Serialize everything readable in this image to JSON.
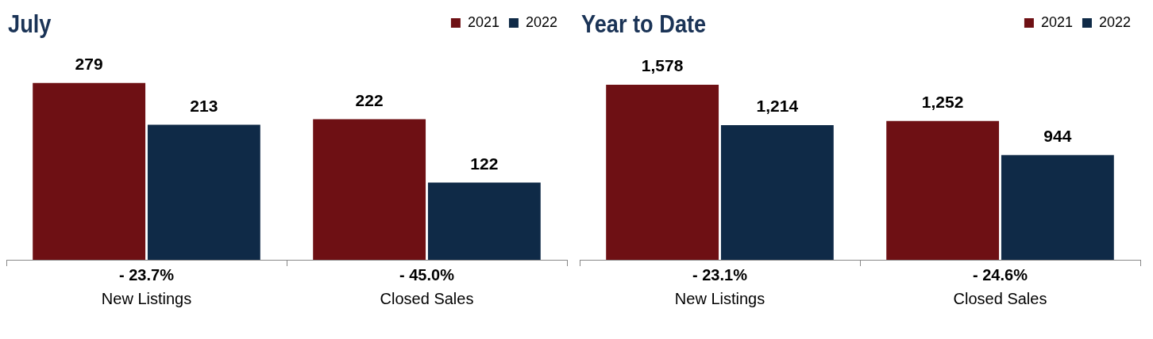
{
  "chart_data": [
    {
      "type": "bar",
      "title": "July",
      "categories": [
        "New Listings",
        "Closed Sales"
      ],
      "legend": "top right",
      "data_labels": true,
      "series": [
        {
          "name": "2021",
          "color": "#6e1014",
          "values": [
            279,
            222
          ]
        },
        {
          "name": "2022",
          "color": "#0f2a47",
          "values": [
            213,
            122
          ]
        }
      ],
      "annotations": [
        "- 23.7%",
        "- 45.0%"
      ]
    },
    {
      "type": "bar",
      "title": "Year to Date",
      "categories": [
        "New Listings",
        "Closed Sales"
      ],
      "legend": "top right",
      "series": [
        {
          "name": "2021",
          "color": "#6e1014",
          "values": [
            1578,
            1252
          ],
          "value_labels": [
            "1,578",
            "1,252"
          ]
        },
        {
          "name": "2022",
          "color": "#0f2a47",
          "values": [
            1214,
            944
          ],
          "value_labels": [
            "1,214",
            "944"
          ]
        }
      ],
      "annotations": [
        "- 23.1%",
        "- 24.6%"
      ]
    }
  ]
}
